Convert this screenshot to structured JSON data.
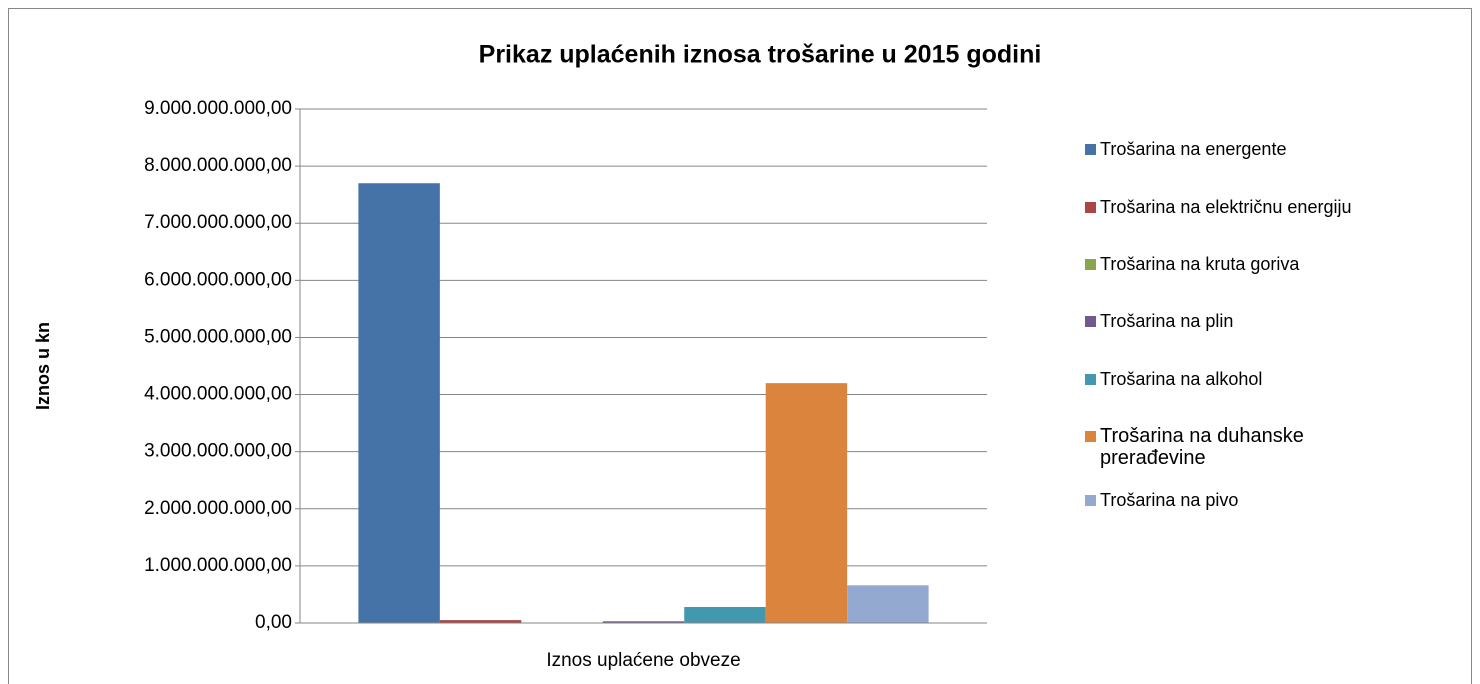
{
  "chart_data": {
    "type": "bar",
    "title": "Prikaz uplaćenih iznosa  trošarine u 2015 godini",
    "y_label": "Iznos u kn",
    "categories": [
      "Iznos uplaćene obveze"
    ],
    "series": [
      {
        "name": "Trošarina na energente",
        "color": "#4572a7",
        "values": [
          7700000000
        ]
      },
      {
        "name": "Trošarina na električnu energiju",
        "color": "#aa4643",
        "values": [
          50000000
        ]
      },
      {
        "name": "Trošarina na kruta goriva",
        "color": "#89a54e",
        "values": [
          1000000
        ]
      },
      {
        "name": "Trošarina na plin",
        "color": "#71588f",
        "values": [
          30000000
        ]
      },
      {
        "name": "Trošarina na alkohol",
        "color": "#4198af",
        "values": [
          280000000
        ]
      },
      {
        "name": "Trošarina na duhanske prerađevine",
        "color": "#db843d",
        "values": [
          4200000000
        ]
      },
      {
        "name": "Trošarina na pivo",
        "color": "#93a9cf",
        "values": [
          660000000
        ]
      }
    ],
    "ylim": [
      0,
      9000000000
    ],
    "yticks": [
      {
        "value": 0,
        "label": "0,00"
      },
      {
        "value": 1000000000,
        "label": "1.000.000.000,00"
      },
      {
        "value": 2000000000,
        "label": "2.000.000.000,00"
      },
      {
        "value": 3000000000,
        "label": "3.000.000.000,00"
      },
      {
        "value": 4000000000,
        "label": "4.000.000.000,00"
      },
      {
        "value": 5000000000,
        "label": "5.000.000.000,00"
      },
      {
        "value": 6000000000,
        "label": "6.000.000.000,00"
      },
      {
        "value": 7000000000,
        "label": "7.000.000.000,00"
      },
      {
        "value": 8000000000,
        "label": "8.000.000.000,00"
      },
      {
        "value": 9000000000,
        "label": "9.000.000.000,00"
      }
    ],
    "grid": true,
    "legend": "right"
  }
}
